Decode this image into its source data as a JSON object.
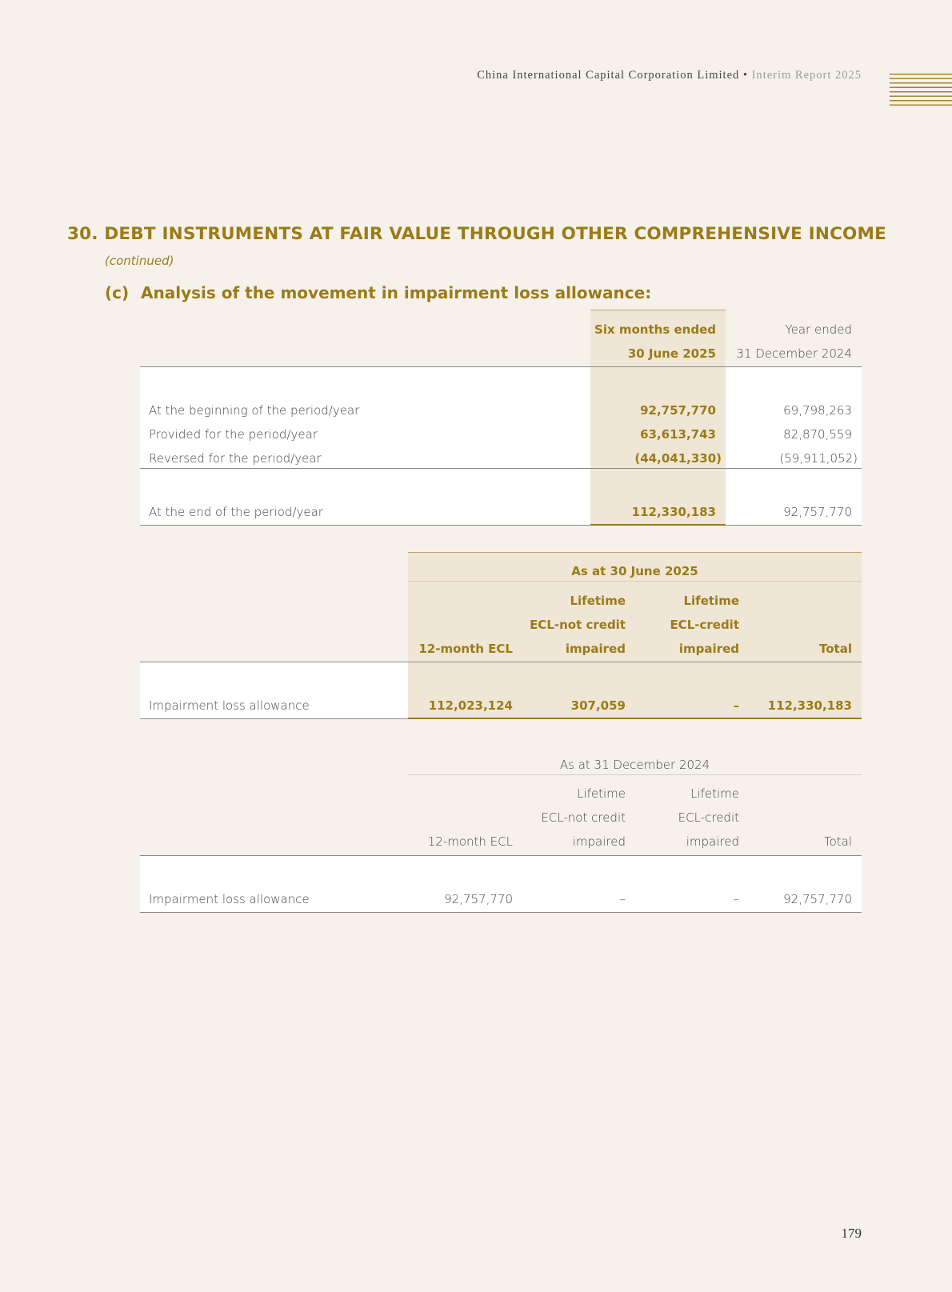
{
  "header": {
    "company": "China International Capital Corporation Limited",
    "separator": "•",
    "report": "Interim Report 2025"
  },
  "section": {
    "title": "30.  DEBT INSTRUMENTS AT FAIR VALUE THROUGH OTHER COMPREHENSIVE INCOME",
    "continued": "(continued)",
    "sub_label": "(c)",
    "sub_title": "Analysis of the movement in impairment loss allowance:"
  },
  "movement_table": {
    "col1_header": [
      "Six months ended",
      "30 June 2025"
    ],
    "col2_header": [
      "Year ended",
      "31 December 2024"
    ],
    "rows": [
      {
        "label": "At the beginning of the period/year",
        "v2025": "92,757,770",
        "v2024": "69,798,263"
      },
      {
        "label": "Provided for the period/year",
        "v2025": "63,613,743",
        "v2024": "82,870,559"
      },
      {
        "label": "Reversed for the period/year",
        "v2025": "(44,041,330)",
        "v2024": "(59,911,052)"
      },
      {
        "label": "At the end of the period/year",
        "v2025": "112,330,183",
        "v2024": "92,757,770"
      }
    ]
  },
  "stage_table_2025": {
    "group_header": "As at 30 June 2025",
    "columns": [
      [
        "",
        "",
        "12-month ECL"
      ],
      [
        "Lifetime",
        "ECL-not credit",
        "impaired"
      ],
      [
        "Lifetime",
        "ECL-credit",
        "impaired"
      ],
      [
        "",
        "",
        "Total"
      ]
    ],
    "row": {
      "label": "Impairment loss allowance",
      "values": [
        "112,023,124",
        "307,059",
        "–",
        "112,330,183"
      ]
    }
  },
  "stage_table_2024": {
    "group_header": "As at 31 December 2024",
    "columns": [
      [
        "",
        "",
        "12-month ECL"
      ],
      [
        "Lifetime",
        "ECL-not credit",
        "impaired"
      ],
      [
        "Lifetime",
        "ECL-credit",
        "impaired"
      ],
      [
        "",
        "",
        "Total"
      ]
    ],
    "row": {
      "label": "Impairment loss allowance",
      "values": [
        "92,757,770",
        "–",
        "–",
        "92,757,770"
      ]
    }
  },
  "page_number": "179",
  "colors": {
    "accent": "#9b7b17",
    "background": "#f6f2eb",
    "highlight": "#f0e6d6"
  }
}
